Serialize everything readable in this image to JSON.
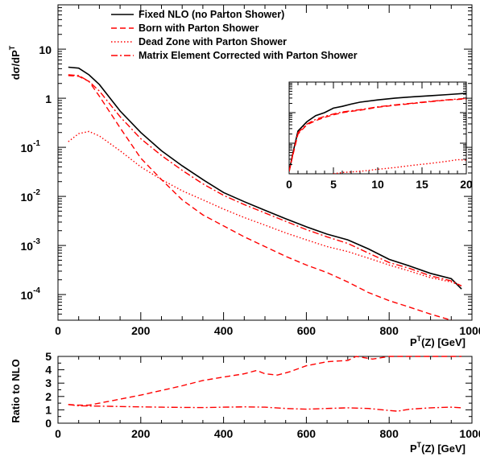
{
  "chart_data": [
    {
      "panel": "main",
      "type": "line",
      "y_scale": "log",
      "ylabel_main": "dσ/dP",
      "ylabel_sup": "T",
      "xlabel_main": "P",
      "xlabel_sup": "T",
      "xlabel_rest": "(Z)  [GeV]",
      "xlim": [
        0,
        1000
      ],
      "ylim": [
        3e-05,
        80
      ],
      "x_ticks": [
        0,
        200,
        400,
        600,
        800,
        1000
      ],
      "y_ticks": [
        {
          "value": 10,
          "base": "10",
          "exp": ""
        },
        {
          "value": 1,
          "base": "1",
          "exp": ""
        },
        {
          "value": 0.1,
          "base": "10",
          "exp": "-1"
        },
        {
          "value": 0.01,
          "base": "10",
          "exp": "-2"
        },
        {
          "value": 0.001,
          "base": "10",
          "exp": "-3"
        },
        {
          "value": 0.0001,
          "base": "10",
          "exp": "-4"
        }
      ],
      "legend_position": "top",
      "series": [
        {
          "name": "Fixed NLO (no Parton Shower)",
          "style": "solid",
          "color": "#000000",
          "x": [
            25,
            50,
            75,
            100,
            150,
            200,
            250,
            300,
            350,
            400,
            450,
            500,
            550,
            600,
            650,
            700,
            750,
            800,
            850,
            900,
            950,
            975
          ],
          "y": [
            4.3,
            4.1,
            3.0,
            1.9,
            0.55,
            0.2,
            0.085,
            0.042,
            0.022,
            0.012,
            0.0078,
            0.0052,
            0.0035,
            0.0024,
            0.0017,
            0.0013,
            0.00085,
            0.00052,
            0.00038,
            0.00027,
            0.00021,
            0.00013
          ]
        },
        {
          "name": "Born with Parton Shower",
          "style": "dashed",
          "color": "#ff0000",
          "x": [
            25,
            50,
            75,
            100,
            150,
            200,
            250,
            300,
            350,
            400,
            450,
            500,
            550,
            600,
            650,
            700,
            750,
            800,
            850,
            900,
            950,
            975
          ],
          "y": [
            2.9,
            2.8,
            2.2,
            1.1,
            0.25,
            0.06,
            0.022,
            0.0085,
            0.0042,
            0.0025,
            0.0015,
            0.00095,
            0.0006,
            0.0004,
            0.00028,
            0.00018,
            0.00011,
            7.5e-05,
            5.5e-05,
            4e-05,
            3e-05,
            2.2e-05
          ]
        },
        {
          "name": "Dead Zone with Parton Shower",
          "style": "dotted",
          "color": "#ff0000",
          "x": [
            25,
            50,
            75,
            100,
            150,
            200,
            250,
            300,
            350,
            400,
            450,
            500,
            550,
            600,
            650,
            700,
            750,
            800,
            850,
            900,
            950,
            975
          ],
          "y": [
            0.13,
            0.19,
            0.21,
            0.17,
            0.085,
            0.04,
            0.022,
            0.013,
            0.0085,
            0.0055,
            0.0037,
            0.0026,
            0.0018,
            0.0013,
            0.00095,
            0.00075,
            0.00055,
            0.0004,
            0.0003,
            0.00022,
            0.00018,
            0.00015
          ]
        },
        {
          "name": "Matrix Element Corrected with Parton Shower",
          "style": "dashdot",
          "color": "#ff0000",
          "x": [
            25,
            50,
            75,
            100,
            150,
            200,
            250,
            300,
            350,
            400,
            450,
            500,
            550,
            600,
            650,
            700,
            750,
            800,
            850,
            900,
            950,
            975
          ],
          "y": [
            3.0,
            2.9,
            2.2,
            1.4,
            0.42,
            0.15,
            0.068,
            0.034,
            0.018,
            0.0105,
            0.0068,
            0.0046,
            0.0031,
            0.0021,
            0.0015,
            0.0011,
            0.0007,
            0.00045,
            0.00034,
            0.00024,
            0.00019,
            0.00015
          ]
        }
      ]
    },
    {
      "panel": "inset",
      "type": "line",
      "y_scale": "log",
      "xlim": [
        0,
        20
      ],
      "ylim": [
        0.01,
        10
      ],
      "x_ticks": [
        0,
        5,
        10,
        15,
        20
      ],
      "series": [
        {
          "name": "Fixed NLO (no Parton Shower)",
          "style": "solid",
          "color": "#000000",
          "x": [
            0,
            0.5,
            1,
            2,
            3,
            4,
            5,
            6,
            7,
            8,
            10,
            12,
            14,
            16,
            18,
            20
          ],
          "y": [
            0.012,
            0.06,
            0.25,
            0.5,
            0.8,
            1.0,
            1.4,
            1.6,
            1.9,
            2.2,
            2.6,
            3.0,
            3.3,
            3.6,
            3.9,
            4.3
          ]
        },
        {
          "name": "Born with Parton Shower",
          "style": "dashed",
          "color": "#ff0000",
          "x": [
            0,
            0.5,
            1,
            2,
            3,
            4,
            5,
            6,
            7,
            8,
            10,
            12,
            14,
            16,
            18,
            20
          ],
          "y": [
            0.012,
            0.05,
            0.2,
            0.4,
            0.55,
            0.7,
            0.85,
            1.0,
            1.1,
            1.2,
            1.5,
            1.75,
            2.0,
            2.3,
            2.6,
            2.8
          ]
        },
        {
          "name": "Dead Zone with Parton Shower",
          "style": "dotted",
          "color": "#ff0000",
          "x": [
            5,
            6,
            8,
            10,
            12,
            14,
            16,
            18,
            19,
            20
          ],
          "y": [
            0.01,
            0.011,
            0.012,
            0.014,
            0.016,
            0.019,
            0.022,
            0.026,
            0.029,
            0.028
          ]
        },
        {
          "name": "Matrix Element Corrected with Parton Shower",
          "style": "dashdot",
          "color": "#ff0000",
          "x": [
            0,
            0.5,
            1,
            2,
            3,
            4,
            5,
            6,
            7,
            8,
            10,
            12,
            14,
            16,
            18,
            20
          ],
          "y": [
            0.012,
            0.055,
            0.22,
            0.42,
            0.6,
            0.75,
            0.9,
            1.05,
            1.15,
            1.25,
            1.55,
            1.8,
            2.05,
            2.35,
            2.65,
            2.9
          ]
        }
      ]
    },
    {
      "panel": "ratio",
      "type": "line",
      "ylabel": "Ratio to NLO",
      "xlabel_main": "P",
      "xlabel_sup": "T",
      "xlabel_rest": "(Z)  [GeV]",
      "xlim": [
        0,
        1000
      ],
      "ylim": [
        0,
        5
      ],
      "x_ticks": [
        0,
        200,
        400,
        600,
        800,
        1000
      ],
      "y_ticks": [
        0,
        1,
        2,
        3,
        4,
        5
      ],
      "series": [
        {
          "name": "Born with Parton Shower",
          "style": "dashed",
          "color": "#ff0000",
          "x": [
            25,
            50,
            75,
            100,
            150,
            200,
            250,
            300,
            350,
            400,
            450,
            480,
            500,
            530,
            560,
            600,
            650,
            700,
            720,
            760,
            800,
            850,
            900,
            950,
            975
          ],
          "y": [
            1.4,
            1.35,
            1.35,
            1.5,
            1.8,
            2.1,
            2.45,
            2.8,
            3.2,
            3.45,
            3.7,
            3.95,
            3.7,
            3.6,
            3.85,
            4.3,
            4.6,
            4.7,
            5.0,
            4.8,
            5.0,
            5.0,
            5.0,
            5.0,
            5.0
          ]
        },
        {
          "name": "Matrix Element Corrected with Parton Shower",
          "style": "dashdot",
          "color": "#ff0000",
          "x": [
            25,
            50,
            100,
            150,
            200,
            250,
            300,
            350,
            400,
            450,
            500,
            550,
            600,
            650,
            700,
            750,
            800,
            820,
            850,
            900,
            950,
            975
          ],
          "y": [
            1.4,
            1.3,
            1.28,
            1.25,
            1.22,
            1.2,
            1.18,
            1.17,
            1.2,
            1.22,
            1.2,
            1.1,
            1.05,
            1.1,
            1.15,
            1.1,
            0.95,
            0.9,
            1.05,
            1.15,
            1.2,
            1.15
          ]
        }
      ]
    }
  ]
}
